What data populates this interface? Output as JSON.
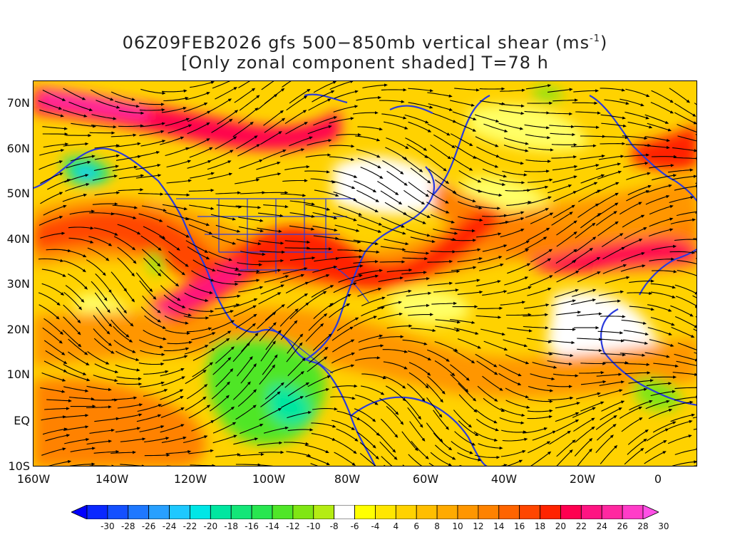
{
  "title_line1": "06Z09FEB2026 gfs 500−850mb vertical shear (ms",
  "title_unit_exp": "-1",
  "title_line1_close": ")",
  "title_line2": "[Only zonal component shaded] T=78 h",
  "lat_labels": [
    "70N",
    "60N",
    "50N",
    "40N",
    "30N",
    "20N",
    "10N",
    "EQ",
    "10S"
  ],
  "lon_labels": [
    "160W",
    "140W",
    "120W",
    "100W",
    "80W",
    "60W",
    "40W",
    "20W",
    "0"
  ],
  "colorbar": {
    "labels": [
      "-30",
      "-28",
      "-26",
      "-24",
      "-22",
      "-20",
      "-18",
      "-16",
      "-14",
      "-12",
      "-10",
      "-8",
      "-6",
      "-4",
      "4",
      "6",
      "8",
      "10",
      "12",
      "14",
      "16",
      "18",
      "20",
      "22",
      "24",
      "26",
      "28",
      "30"
    ],
    "colors": [
      "#0000ff",
      "#0a28ff",
      "#1450ff",
      "#1e78ff",
      "#28a0ff",
      "#1ec8ff",
      "#00e6e6",
      "#00e6a0",
      "#14e678",
      "#28e650",
      "#50e628",
      "#80e614",
      "#b4ec14",
      "#ffffff",
      "#ffff00",
      "#ffe600",
      "#ffd200",
      "#ffbe00",
      "#ffaa00",
      "#ff9600",
      "#ff8200",
      "#ff6400",
      "#ff4600",
      "#ff2300",
      "#ff0050",
      "#ff1482",
      "#ff28a0",
      "#ff3cc8",
      "#ff50e6"
    ]
  }
}
